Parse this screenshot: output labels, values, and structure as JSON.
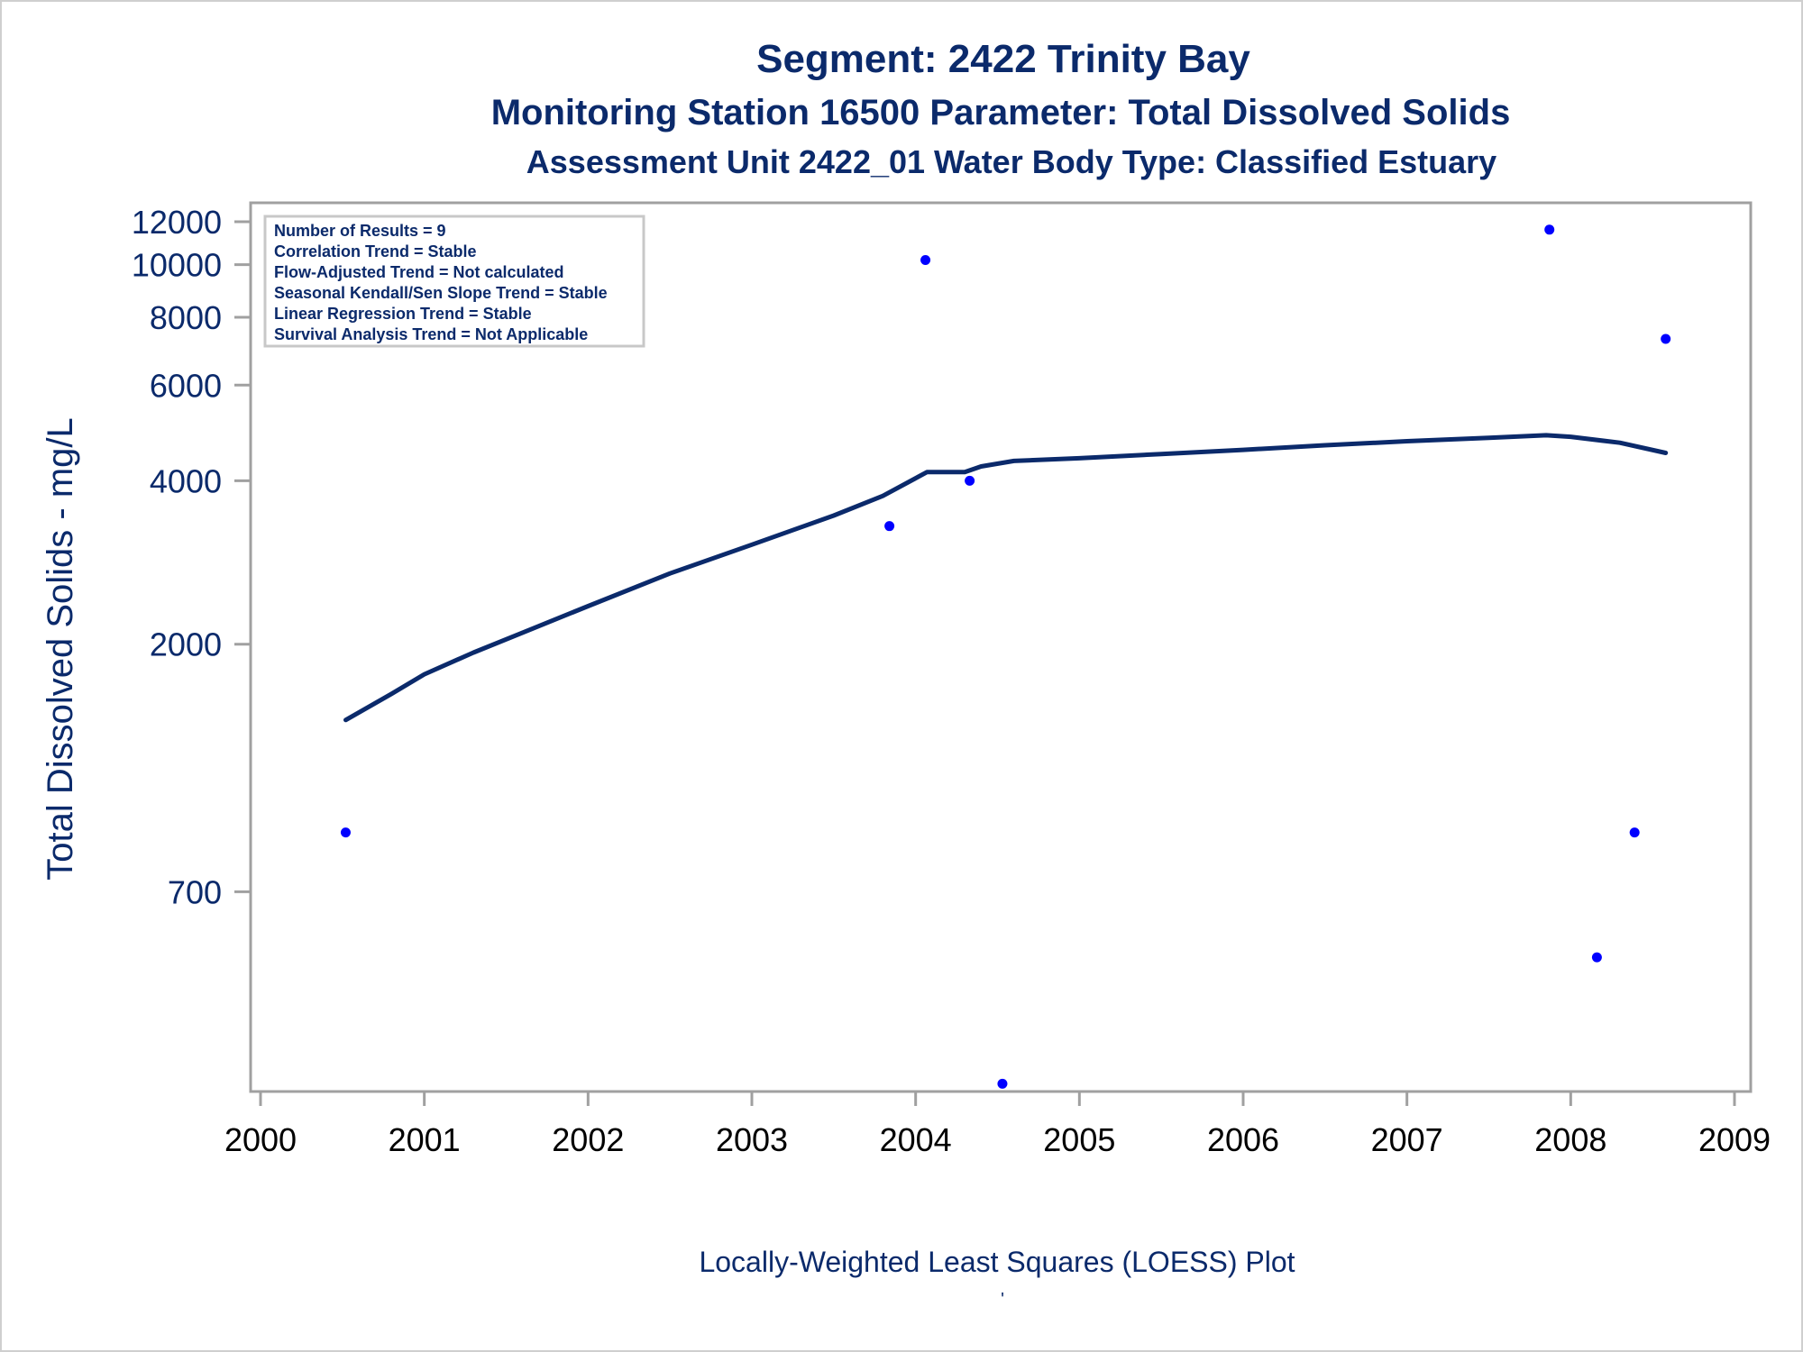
{
  "chart_data": {
    "type": "scatter",
    "title": "Segment: 2422  Trinity Bay",
    "subtitle": "Monitoring Station 16500 Parameter: Total Dissolved Solids",
    "subtitle2": "Assessment Unit 2422_01   Water Body Type: Classified Estuary",
    "xlabel": "Locally-Weighted Least Squares (LOESS) Plot",
    "ylabel": "Total Dissolved Solids - mg/L",
    "footnote": "'",
    "y_scale": "log",
    "xlim": [
      2000,
      2009
    ],
    "ylim": [
      300,
      13000
    ],
    "x_ticks": [
      2000,
      2001,
      2002,
      2003,
      2004,
      2005,
      2006,
      2007,
      2008,
      2009
    ],
    "y_ticks": [
      700,
      2000,
      4000,
      6000,
      8000,
      10000,
      12000
    ],
    "grid": false,
    "stats_box": {
      "position": "top-left",
      "lines": [
        "Number of Results = 9",
        "Correlation Trend = Stable",
        "Flow-Adjusted Trend = Not calculated",
        "Seasonal Kendall/Sen Slope Trend = Stable",
        "Linear Regression Trend = Stable",
        "Survival Analysis Trend = Not Applicable"
      ]
    },
    "series": [
      {
        "type": "scatter",
        "color": "#0000ff",
        "x": [
          2000.52,
          2003.84,
          2004.06,
          2004.33,
          2004.53,
          2007.87,
          2008.16,
          2008.39,
          2008.58
        ],
        "y": [
          900,
          3300,
          10200,
          4000,
          310,
          11600,
          530,
          900,
          7300
        ]
      },
      {
        "type": "line",
        "color": "#0b2a6b",
        "x": [
          2000.52,
          2000.8,
          2001.0,
          2001.3,
          2001.6,
          2002.0,
          2002.5,
          2003.0,
          2003.5,
          2003.8,
          2004.07,
          2004.3,
          2004.4,
          2004.6,
          2005.0,
          2005.5,
          2006.0,
          2006.5,
          2007.0,
          2007.5,
          2007.85,
          2008.0,
          2008.3,
          2008.58
        ],
        "y": [
          1450,
          1620,
          1760,
          1930,
          2100,
          2350,
          2700,
          3050,
          3450,
          3750,
          4150,
          4150,
          4250,
          4350,
          4400,
          4480,
          4560,
          4650,
          4730,
          4800,
          4850,
          4820,
          4700,
          4500
        ]
      }
    ]
  }
}
